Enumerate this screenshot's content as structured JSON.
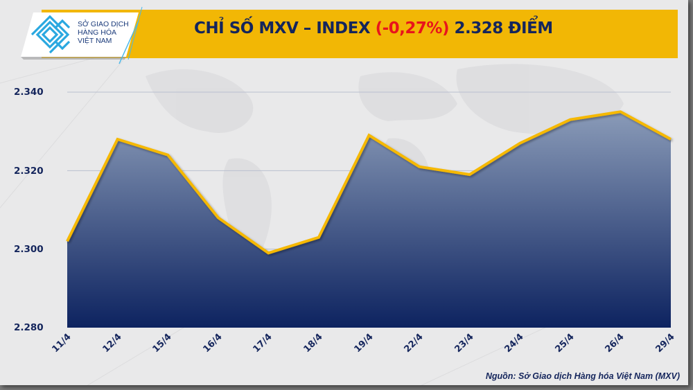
{
  "header": {
    "logo_lines": [
      "SỞ GIAO DỊCH",
      "HÀNG HÓA",
      "VIỆT NAM"
    ],
    "title_prefix": "CHỈ SỐ MXV – INDEX ",
    "title_change": "(-0,27%)",
    "title_suffix": " 2.328 ĐIỂM"
  },
  "y_axis": {
    "ticks": [
      "2.340",
      "2.320",
      "2.300",
      "2.280"
    ]
  },
  "footer": {
    "source": "Nguồn: Sở Giao dịch Hàng hóa Việt Nam (MXV)"
  },
  "colors": {
    "banner": "#f2b705",
    "title_text": "#14255c",
    "negative": "#e8141c",
    "line": "#f5b800",
    "area_top": "#8a9bb8",
    "area_bottom": "#0d2360"
  },
  "chart_data": {
    "type": "area",
    "title": "CHỈ SỐ MXV – INDEX (-0,27%) 2.328 ĐIỂM",
    "categories": [
      "11/4",
      "12/4",
      "15/4",
      "16/4",
      "17/4",
      "18/4",
      "19/4",
      "22/4",
      "23/4",
      "24/4",
      "25/4",
      "26/4",
      "29/4"
    ],
    "values": [
      2302,
      2328,
      2324,
      2308,
      2299,
      2303,
      2329,
      2321,
      2319,
      2327,
      2333,
      2335,
      2328
    ],
    "xlabel": "",
    "ylabel": "",
    "ylim": [
      2280,
      2340
    ],
    "yticks": [
      2280,
      2300,
      2320,
      2340
    ],
    "grid": true,
    "legend": null,
    "source": "Nguồn: Sở Giao dịch Hàng hóa Việt Nam (MXV)"
  }
}
